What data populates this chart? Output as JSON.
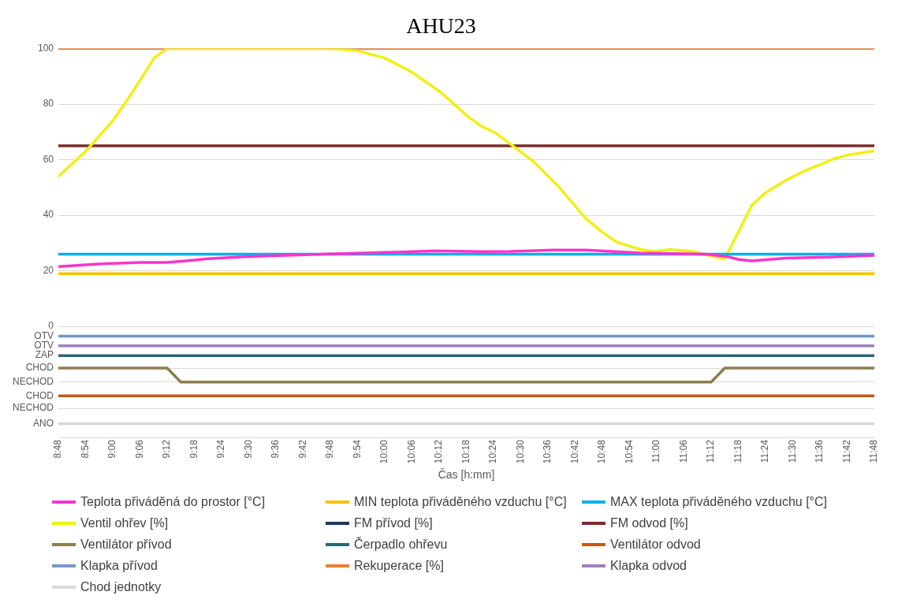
{
  "chart_data": {
    "type": "line",
    "title": "AHU23",
    "xlabel": "Čas [h:mm]",
    "xlim": [
      8.8,
      11.8
    ],
    "xticks": [
      {
        "value": 8.8,
        "label": "8:48"
      },
      {
        "value": 8.9,
        "label": "8:54"
      },
      {
        "value": 9,
        "label": "9:00"
      },
      {
        "value": 9.1,
        "label": "9:06"
      },
      {
        "value": 9.2,
        "label": "9:12"
      },
      {
        "value": 9.3,
        "label": "9:18"
      },
      {
        "value": 9.4,
        "label": "9:24"
      },
      {
        "value": 9.5,
        "label": "9:30"
      },
      {
        "value": 9.6,
        "label": "9:36"
      },
      {
        "value": 9.7,
        "label": "9:42"
      },
      {
        "value": 9.8,
        "label": "9:48"
      },
      {
        "value": 9.9,
        "label": "9:54"
      },
      {
        "value": 10,
        "label": "10:00"
      },
      {
        "value": 10.1,
        "label": "10:06"
      },
      {
        "value": 10.2,
        "label": "10:12"
      },
      {
        "value": 10.3,
        "label": "10:18"
      },
      {
        "value": 10.4,
        "label": "10:24"
      },
      {
        "value": 10.5,
        "label": "10:30"
      },
      {
        "value": 10.6,
        "label": "10:36"
      },
      {
        "value": 10.7,
        "label": "10:42"
      },
      {
        "value": 10.8,
        "label": "10:48"
      },
      {
        "value": 10.9,
        "label": "10:54"
      },
      {
        "value": 11,
        "label": "11:00"
      },
      {
        "value": 11.1,
        "label": "11:06"
      },
      {
        "value": 11.2,
        "label": "11:12"
      },
      {
        "value": 11.3,
        "label": "11:18"
      },
      {
        "value": 11.4,
        "label": "11:24"
      },
      {
        "value": 11.5,
        "label": "11:30"
      },
      {
        "value": 11.6,
        "label": "11:36"
      },
      {
        "value": 11.7,
        "label": "11:42"
      },
      {
        "value": 11.8,
        "label": "11:48"
      }
    ],
    "ylim": [
      -40,
      100
    ],
    "yticks": [
      100,
      80,
      60,
      40,
      20,
      0,
      {
        "value": -3.5,
        "label": "OTV"
      },
      {
        "value": -7,
        "label": "OTV"
      },
      {
        "value": -10.5,
        "label": "ZAP"
      },
      {
        "value": -15,
        "label": "CHOD"
      },
      {
        "value": -20,
        "label": "NECHOD"
      },
      {
        "value": -25,
        "label": "CHOD"
      },
      {
        "value": -29.5,
        "label": "NECHOD"
      },
      {
        "value": -35,
        "label": "ANO"
      }
    ],
    "grid": "y",
    "legend": "bottom",
    "marker": "none",
    "line_style": "solid",
    "series": [
      {
        "name": "Teplota přiváděná do prostor [°C]",
        "color": "#ff33cc",
        "x": [
          8.8,
          8.957,
          9.103,
          9.197,
          9.27,
          9.353,
          9.48,
          9.637,
          9.793,
          10.003,
          10.192,
          10.353,
          10.46,
          10.62,
          10.737,
          10.833,
          10.94,
          11.185,
          11.26,
          11.302,
          11.35,
          11.473,
          11.633,
          11.8
        ],
        "values": [
          21.5,
          22.5,
          23,
          23,
          23.6,
          24.4,
          25.1,
          25.6,
          26.1,
          26.6,
          27.2,
          26.9,
          27,
          27.5,
          27.5,
          27,
          26.4,
          26,
          25.1,
          24.1,
          23.6,
          24.6,
          24.9,
          25.6
        ]
      },
      {
        "name": "MIN teplota přiváděného vzduchu [°C]",
        "color": "#ffc000",
        "x": [
          8.8,
          11.8
        ],
        "values": [
          19,
          19
        ]
      },
      {
        "name": "MAX teplota přiváděného vzduchu [°C]",
        "color": "#00b0f0",
        "x": [
          8.8,
          11.8
        ],
        "values": [
          26,
          26
        ]
      },
      {
        "name": "Ventil ohřev [%]",
        "color": "#f0f014",
        "x": [
          8.8,
          8.9,
          9,
          9.05,
          9.1,
          9.152,
          9.2,
          9.8,
          9.9,
          10,
          10.098,
          10.203,
          10.302,
          10.353,
          10.407,
          10.472,
          10.547,
          10.642,
          10.737,
          10.8,
          10.853,
          10.94,
          10.993,
          11.048,
          11.132,
          11.185,
          11.25,
          11.35,
          11.4,
          11.473,
          11.548,
          11.6,
          11.655,
          11.708,
          11.75,
          11.8
        ],
        "values": [
          54,
          63,
          74,
          81,
          88.5,
          96.6,
          100,
          100,
          99.2,
          96.6,
          91.6,
          84.5,
          75.8,
          72.2,
          69.6,
          64.9,
          59.3,
          50,
          39.1,
          33.9,
          30.3,
          27.7,
          27,
          27.7,
          27,
          25.6,
          24.3,
          43.7,
          48.1,
          52.5,
          56.2,
          58.2,
          60.5,
          61.8,
          62.4,
          63.2
        ]
      },
      {
        "name": "FM přívod [%]",
        "color": "#1f3864",
        "values": [
          null
        ]
      },
      {
        "name": "FM odvod [%]",
        "color": "#7b2c2c",
        "x": [
          8.8,
          11.8
        ],
        "values": [
          65,
          65
        ]
      },
      {
        "name": "Ventilátor přívod",
        "color": "#8b7d4d",
        "x": [
          8.8,
          9.2,
          9.25,
          11.2,
          11.25,
          11.8
        ],
        "values": [
          -15,
          -15,
          -20,
          -20,
          -15,
          -15
        ]
      },
      {
        "name": "Čerpadlo ohřevu",
        "color": "#2a6675",
        "x": [
          8.8,
          11.8
        ],
        "values": [
          -10.5,
          -10.5
        ]
      },
      {
        "name": "Ventilátor odvod",
        "color": "#c55a11",
        "x": [
          8.8,
          11.8
        ],
        "values": [
          -25,
          -25
        ]
      },
      {
        "name": "Klapka přívod",
        "color": "#7399c6",
        "x": [
          8.8,
          11.8
        ],
        "values": [
          -3.5,
          -3.5
        ]
      },
      {
        "name": "Rekuperace [%]",
        "color": "#ed7d31",
        "x": [
          8.8,
          11.8
        ],
        "values": [
          100,
          100
        ]
      },
      {
        "name": "Klapka odvod",
        "color": "#9e7fc0",
        "x": [
          8.8,
          11.8
        ],
        "values": [
          -7,
          -7
        ]
      },
      {
        "name": "Chod jednotky",
        "color": "#d9d9d9",
        "x": [
          8.8,
          11.8
        ],
        "values": [
          -35,
          -35
        ]
      }
    ]
  }
}
